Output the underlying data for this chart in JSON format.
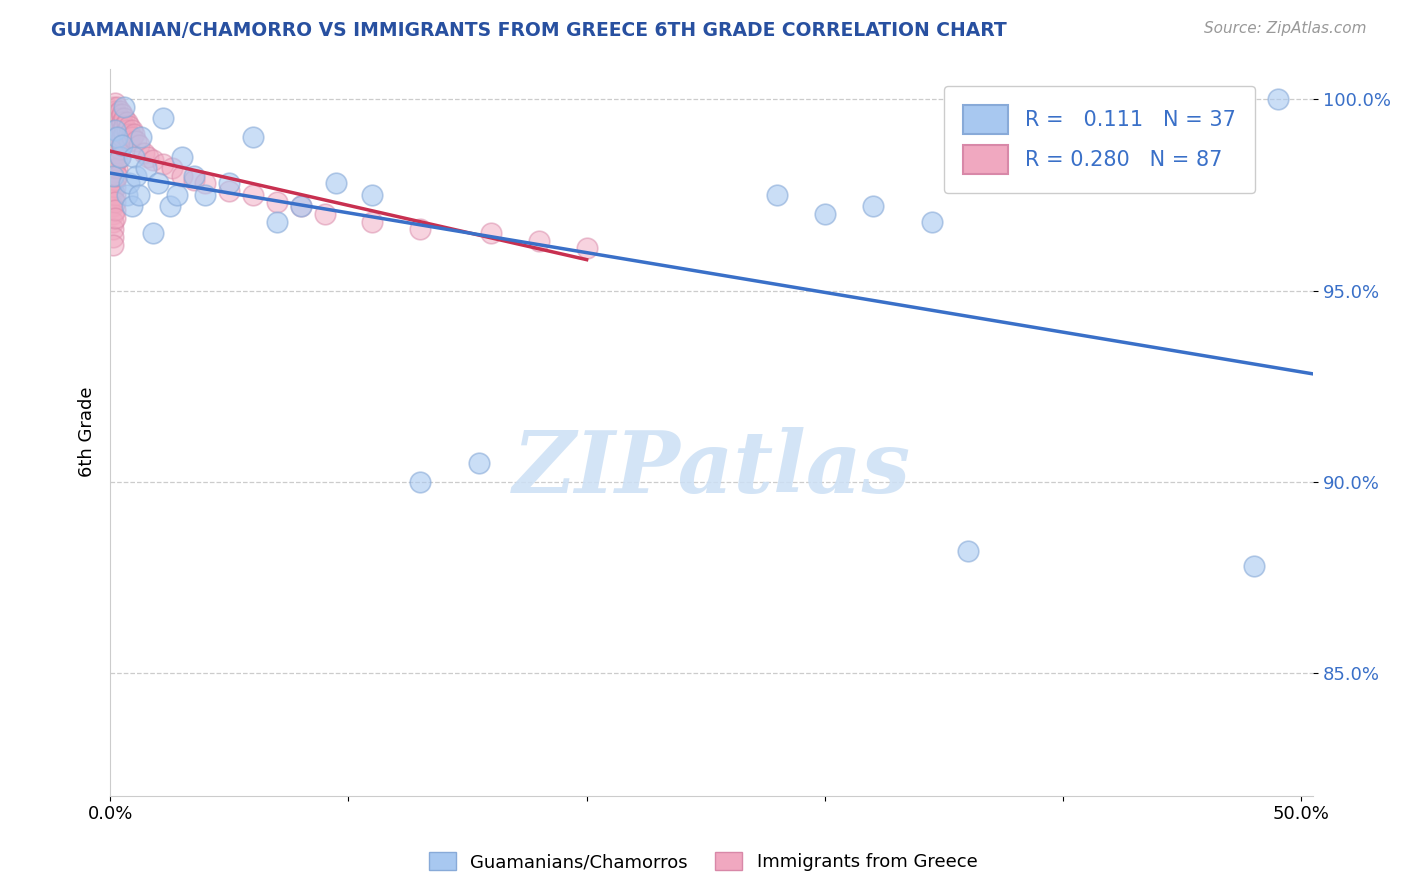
{
  "title": "GUAMANIAN/CHAMORRO VS IMMIGRANTS FROM GREECE 6TH GRADE CORRELATION CHART",
  "source": "Source: ZipAtlas.com",
  "ylabel": "6th Grade",
  "xlim": [
    0.0,
    0.505
  ],
  "ylim": [
    0.818,
    1.008
  ],
  "xtick_positions": [
    0.0,
    0.1,
    0.2,
    0.3,
    0.4,
    0.5
  ],
  "xtick_labels": [
    "0.0%",
    "",
    "",
    "",
    "",
    "50.0%"
  ],
  "ytick_positions": [
    0.85,
    0.9,
    0.95,
    1.0
  ],
  "ytick_labels": [
    "85.0%",
    "90.0%",
    "95.0%",
    "100.0%"
  ],
  "legend_blue_r": "0.111",
  "legend_blue_n": "37",
  "legend_pink_r": "0.280",
  "legend_pink_n": "87",
  "blue_color": "#a8c8f0",
  "pink_color": "#f0a8c0",
  "blue_edge_color": "#88aad8",
  "pink_edge_color": "#d888a8",
  "blue_line_color": "#3a70c8",
  "pink_line_color": "#c83050",
  "watermark": "ZIPatlas",
  "watermark_color": "#cce0f5",
  "title_color": "#2850a0",
  "yaxis_label_color": "#3a70c8",
  "blue_scatter_x": [
    0.001,
    0.002,
    0.003,
    0.004,
    0.005,
    0.006,
    0.007,
    0.008,
    0.009,
    0.01,
    0.011,
    0.012,
    0.013,
    0.015,
    0.018,
    0.02,
    0.022,
    0.025,
    0.028,
    0.03,
    0.035,
    0.04,
    0.05,
    0.06,
    0.07,
    0.08,
    0.095,
    0.11,
    0.13,
    0.155,
    0.28,
    0.3,
    0.32,
    0.345,
    0.36,
    0.48,
    0.49
  ],
  "blue_scatter_y": [
    0.98,
    0.992,
    0.99,
    0.985,
    0.988,
    0.998,
    0.975,
    0.978,
    0.972,
    0.985,
    0.98,
    0.975,
    0.99,
    0.982,
    0.965,
    0.978,
    0.995,
    0.972,
    0.975,
    0.985,
    0.98,
    0.975,
    0.978,
    0.99,
    0.968,
    0.972,
    0.978,
    0.975,
    0.9,
    0.905,
    0.975,
    0.97,
    0.972,
    0.968,
    0.882,
    0.878,
    1.0
  ],
  "pink_scatter_x": [
    0.001,
    0.001,
    0.001,
    0.001,
    0.001,
    0.001,
    0.001,
    0.001,
    0.001,
    0.001,
    0.001,
    0.001,
    0.001,
    0.001,
    0.001,
    0.001,
    0.001,
    0.001,
    0.001,
    0.002,
    0.002,
    0.002,
    0.002,
    0.002,
    0.002,
    0.002,
    0.002,
    0.002,
    0.002,
    0.002,
    0.002,
    0.002,
    0.002,
    0.002,
    0.002,
    0.003,
    0.003,
    0.003,
    0.003,
    0.003,
    0.003,
    0.003,
    0.003,
    0.003,
    0.003,
    0.004,
    0.004,
    0.004,
    0.004,
    0.004,
    0.004,
    0.004,
    0.005,
    0.005,
    0.005,
    0.005,
    0.006,
    0.006,
    0.006,
    0.007,
    0.007,
    0.008,
    0.008,
    0.008,
    0.009,
    0.009,
    0.01,
    0.011,
    0.012,
    0.014,
    0.016,
    0.018,
    0.022,
    0.026,
    0.03,
    0.035,
    0.04,
    0.05,
    0.06,
    0.07,
    0.08,
    0.09,
    0.11,
    0.13,
    0.16,
    0.18,
    0.2
  ],
  "pink_scatter_y": [
    0.998,
    0.996,
    0.994,
    0.992,
    0.99,
    0.988,
    0.986,
    0.984,
    0.982,
    0.98,
    0.978,
    0.976,
    0.974,
    0.972,
    0.97,
    0.968,
    0.966,
    0.964,
    0.962,
    0.999,
    0.997,
    0.995,
    0.993,
    0.991,
    0.989,
    0.987,
    0.985,
    0.983,
    0.981,
    0.979,
    0.977,
    0.975,
    0.973,
    0.971,
    0.969,
    0.998,
    0.996,
    0.994,
    0.992,
    0.99,
    0.988,
    0.986,
    0.984,
    0.982,
    0.98,
    0.997,
    0.995,
    0.993,
    0.991,
    0.989,
    0.987,
    0.985,
    0.996,
    0.994,
    0.992,
    0.99,
    0.995,
    0.993,
    0.991,
    0.994,
    0.992,
    0.993,
    0.991,
    0.989,
    0.992,
    0.99,
    0.991,
    0.989,
    0.988,
    0.986,
    0.985,
    0.984,
    0.983,
    0.982,
    0.98,
    0.979,
    0.978,
    0.976,
    0.975,
    0.973,
    0.972,
    0.97,
    0.968,
    0.966,
    0.965,
    0.963,
    0.961
  ],
  "blue_trend_x": [
    0.0,
    0.505
  ],
  "pink_trend_x": [
    0.0,
    0.2
  ]
}
